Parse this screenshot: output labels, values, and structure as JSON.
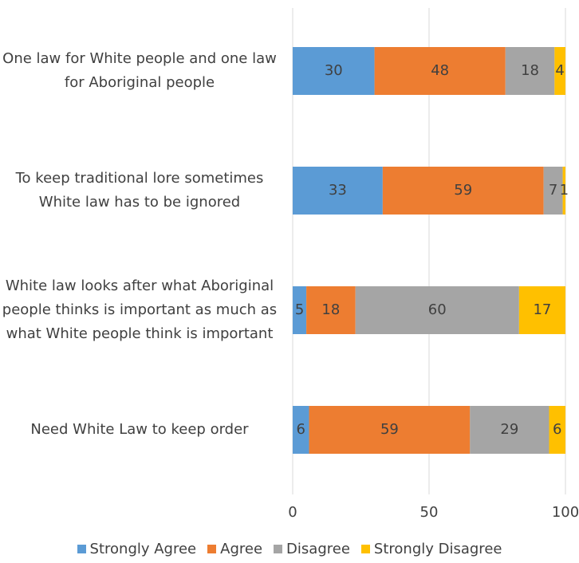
{
  "chart_data": {
    "type": "stacked-bar-horizontal",
    "categories": [
      "One law for White people and one law for Aboriginal people",
      "To keep traditional lore sometimes White law has to be ignored",
      "White law looks after what Aboriginal people thinks is important as much as what White people think is important",
      "Need White Law to keep order"
    ],
    "series": [
      {
        "name": "Strongly Agree",
        "color": "#5b9bd5",
        "values": [
          30,
          33,
          5,
          6
        ]
      },
      {
        "name": "Agree",
        "color": "#ed7d31",
        "values": [
          48,
          59,
          18,
          59
        ]
      },
      {
        "name": "Disagree",
        "color": "#a5a5a5",
        "values": [
          18,
          7,
          60,
          29
        ]
      },
      {
        "name": "Strongly Disagree",
        "color": "#ffc000",
        "values": [
          4,
          1,
          17,
          6
        ]
      }
    ],
    "xlim": [
      0,
      100
    ],
    "xticks": [
      0,
      50,
      100
    ],
    "grid": true,
    "legend": "bottom"
  }
}
